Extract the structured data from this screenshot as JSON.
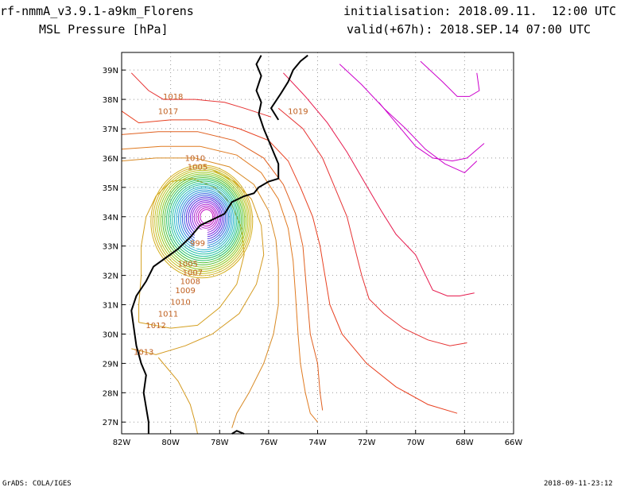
{
  "header": {
    "model": "rf-nmmA_v3.9.1-a9km_Florens",
    "field": "MSL Pressure [hPa]",
    "init": "initialisation: 2018.09.11.  12:00 UTC",
    "valid": "valid(+67h): 2018.SEP.14 07:00 UTC"
  },
  "footer": {
    "credit": "GrADS: COLA/IGES",
    "timestamp": "2018-09-11-23:12"
  },
  "chart_data": {
    "type": "contour",
    "variable": "MSL Pressure",
    "units": "hPa",
    "xlim": [
      -82,
      -66
    ],
    "ylim": [
      26.6,
      39.6
    ],
    "x_ticks": [
      -82,
      -80,
      -78,
      -76,
      -74,
      -72,
      -70,
      -68,
      -66
    ],
    "x_tick_labels": [
      "82W",
      "80W",
      "78W",
      "76W",
      "74W",
      "72W",
      "70W",
      "68W",
      "66W"
    ],
    "y_ticks": [
      27,
      28,
      29,
      30,
      31,
      32,
      33,
      34,
      35,
      36,
      37,
      38,
      39
    ],
    "y_tick_labels": [
      "27N",
      "28N",
      "29N",
      "30N",
      "31N",
      "32N",
      "33N",
      "34N",
      "35N",
      "36N",
      "37N",
      "38N",
      "39N"
    ],
    "grid": true,
    "low_center": {
      "lon": -78.6,
      "lat": 34.0,
      "pressure_min_approx": 960
    },
    "contour_levels": [
      960,
      963,
      966,
      969,
      972,
      975,
      978,
      981,
      984,
      987,
      990,
      993,
      996,
      999,
      1002,
      1004,
      1005,
      1006,
      1007,
      1008,
      1009,
      1010,
      1011,
      1012,
      1013,
      1014,
      1015,
      1016,
      1017,
      1018,
      1019,
      1020
    ],
    "contour_labels": [
      {
        "text": "1018",
        "lon": -79.9,
        "lat": 38.0
      },
      {
        "text": "1017",
        "lon": -80.1,
        "lat": 37.5
      },
      {
        "text": "1019",
        "lon": -74.8,
        "lat": 37.5
      },
      {
        "text": "1010",
        "lon": -79.0,
        "lat": 35.9
      },
      {
        "text": "1005",
        "lon": -78.9,
        "lat": 35.6
      },
      {
        "text": "999",
        "lon": -78.9,
        "lat": 33.0
      },
      {
        "text": "1005",
        "lon": -79.3,
        "lat": 32.3
      },
      {
        "text": "1007",
        "lon": -79.1,
        "lat": 32.0
      },
      {
        "text": "1008",
        "lon": -79.2,
        "lat": 31.7
      },
      {
        "text": "1009",
        "lon": -79.4,
        "lat": 31.4
      },
      {
        "text": "1010",
        "lon": -79.6,
        "lat": 31.0
      },
      {
        "text": "1011",
        "lon": -80.1,
        "lat": 30.6
      },
      {
        "text": "1012",
        "lon": -80.6,
        "lat": 30.2
      },
      {
        "text": "1013",
        "lon": -81.1,
        "lat": 29.3
      }
    ]
  },
  "colors": {
    "p1020": "#cc00cc",
    "p1019": "#e61a4d",
    "p1018": "#e63333",
    "p1017": "#e84020",
    "p1016": "#e06020",
    "p1015": "#e07a20",
    "p1014": "#d88a25",
    "p1013": "#d49a20",
    "p1012": "#d4a020",
    "inner_ramp": [
      "#d4b020",
      "#c0c020",
      "#90c820",
      "#50c030",
      "#20c060",
      "#20c0a0",
      "#20b0c8",
      "#2090d8",
      "#3060e0",
      "#5030e0",
      "#8020e0",
      "#b020d0",
      "#c010c0"
    ]
  }
}
